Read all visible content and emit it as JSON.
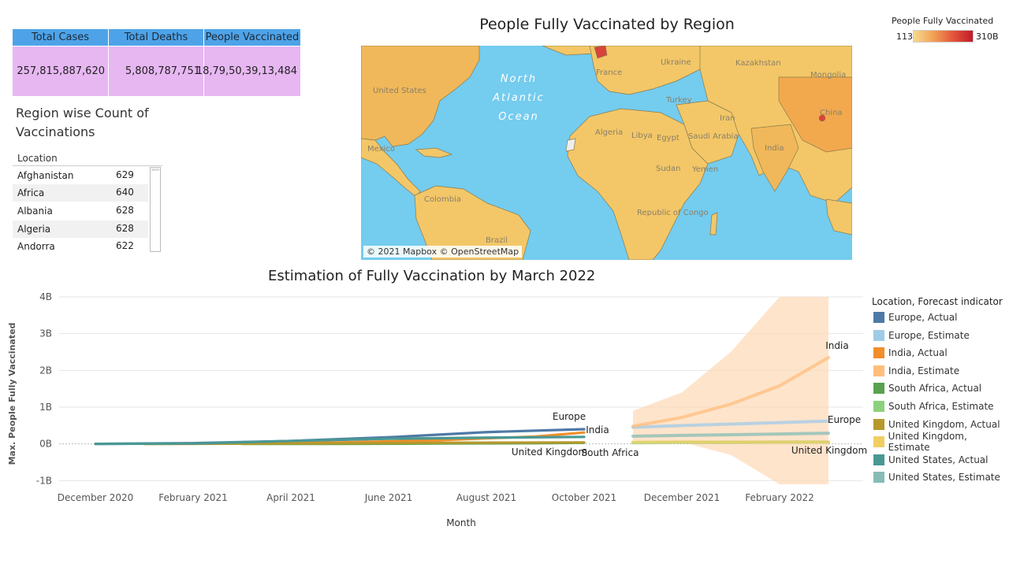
{
  "kpi": {
    "headers": [
      "Total Cases",
      "Total Deaths",
      "People Vaccinated"
    ],
    "values": [
      "257,815,887,620",
      "5,808,787,751",
      "18,79,50,39,13,484"
    ]
  },
  "region_section": {
    "title": "Region wise Count of Vaccinations",
    "column_header": "Location",
    "rows": [
      {
        "name": "Afghanistan",
        "value": "629"
      },
      {
        "name": "Africa",
        "value": "640"
      },
      {
        "name": "Albania",
        "value": "628"
      },
      {
        "name": "Algeria",
        "value": "628"
      },
      {
        "name": "Andorra",
        "value": "622"
      }
    ]
  },
  "map": {
    "title": "People Fully Vaccinated by Region",
    "attribution": "© 2021 Mapbox © OpenStreetMap",
    "ocean_label": [
      "North",
      "Atlantic",
      "Ocean"
    ],
    "labels": [
      "United States",
      "Mexico",
      "Colombia",
      "Brazil",
      "Algeria",
      "Libya",
      "Egypt",
      "Sudan",
      "Saudi Arabia",
      "Iran",
      "Turkey",
      "Ukraine",
      "France",
      "Kazakhstan",
      "Mongolia",
      "China",
      "India",
      "Republic of Congo",
      "Yemen"
    ],
    "legend": {
      "title": "People Fully Vaccinated",
      "min": "113",
      "max": "310B"
    },
    "colors": {
      "ocean": "#74ccef",
      "land": "#f3c768",
      "borders": "#8b7a4a"
    }
  },
  "chart_data": {
    "type": "line",
    "title": "Estimation of Fully Vaccination by March 2022",
    "xlabel": "Month",
    "ylabel": "Max. People Fully Vaccinated",
    "x_ticks": [
      "December 2020",
      "February 2021",
      "April 2021",
      "June 2021",
      "August 2021",
      "October 2021",
      "December 2021",
      "February 2022"
    ],
    "y_ticks": [
      "4B",
      "3B",
      "2B",
      "1B",
      "0B",
      "-1B"
    ],
    "ylim": [
      -1.1,
      4.0
    ],
    "y_unit": "billions",
    "legend_title": "Location, Forecast indicator",
    "legend_position": "right",
    "series": [
      {
        "name": "Europe, Actual",
        "color": "#4e79a7",
        "x": [
          "2020-12",
          "2021-02",
          "2021-04",
          "2021-06",
          "2021-08",
          "2021-10"
        ],
        "values": [
          0.0,
          0.02,
          0.08,
          0.18,
          0.32,
          0.4
        ]
      },
      {
        "name": "Europe, Estimate",
        "color": "#a0cbe8",
        "x": [
          "2021-11",
          "2021-12",
          "2022-01",
          "2022-02",
          "2022-03"
        ],
        "values": [
          0.45,
          0.5,
          0.54,
          0.58,
          0.62
        ]
      },
      {
        "name": "India, Actual",
        "color": "#f28e2b",
        "x": [
          "2021-01",
          "2021-03",
          "2021-05",
          "2021-07",
          "2021-09",
          "2021-10"
        ],
        "values": [
          0.0,
          0.01,
          0.04,
          0.1,
          0.2,
          0.31
        ]
      },
      {
        "name": "India, Estimate",
        "color": "#ffbe7d",
        "x": [
          "2021-11",
          "2021-12",
          "2022-01",
          "2022-02",
          "2022-03"
        ],
        "values": [
          0.48,
          0.72,
          1.08,
          1.58,
          2.35
        ]
      },
      {
        "name": "South Africa, Actual",
        "color": "#59a14f",
        "x": [
          "2021-03",
          "2021-05",
          "2021-07",
          "2021-09",
          "2021-10"
        ],
        "values": [
          0.0,
          0.0,
          0.01,
          0.02,
          0.03
        ]
      },
      {
        "name": "South Africa, Estimate",
        "color": "#8cd17d",
        "x": [
          "2021-11",
          "2021-12",
          "2022-01",
          "2022-02",
          "2022-03"
        ],
        "values": [
          0.03,
          0.04,
          0.04,
          0.05,
          0.05
        ]
      },
      {
        "name": "United Kingdom, Actual",
        "color": "#b6992d",
        "x": [
          "2021-01",
          "2021-04",
          "2021-07",
          "2021-10"
        ],
        "values": [
          0.0,
          0.01,
          0.03,
          0.04
        ]
      },
      {
        "name": "United Kingdom, Estimate",
        "color": "#f1ce63",
        "x": [
          "2021-11",
          "2021-12",
          "2022-01",
          "2022-02",
          "2022-03"
        ],
        "values": [
          0.05,
          0.05,
          0.05,
          0.05,
          0.05
        ]
      },
      {
        "name": "United States, Actual",
        "color": "#499894",
        "x": [
          "2020-12",
          "2021-02",
          "2021-04",
          "2021-06",
          "2021-08",
          "2021-10"
        ],
        "values": [
          0.0,
          0.01,
          0.08,
          0.14,
          0.17,
          0.19
        ]
      },
      {
        "name": "United States, Estimate",
        "color": "#86bcb6",
        "x": [
          "2021-11",
          "2021-12",
          "2022-01",
          "2022-02",
          "2022-03"
        ],
        "values": [
          0.21,
          0.23,
          0.25,
          0.27,
          0.29
        ]
      }
    ],
    "band": {
      "series": "India, Estimate",
      "x": [
        "2021-11",
        "2021-12",
        "2022-01",
        "2022-02",
        "2022-03"
      ],
      "upper": [
        0.9,
        1.4,
        2.5,
        4.0,
        4.0
      ],
      "lower": [
        0.1,
        0.05,
        -0.3,
        -1.1,
        -1.1
      ],
      "color": "#fdd9b5"
    },
    "annotations": [
      "Europe",
      "India",
      "United Kingdom",
      "South Africa",
      "India",
      "Europe",
      "United Kingdom"
    ]
  }
}
